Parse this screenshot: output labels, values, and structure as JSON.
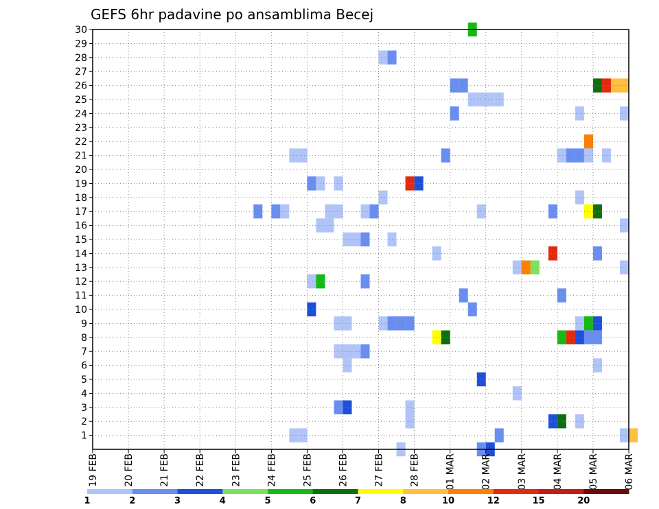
{
  "colors": {
    "levels": [
      "#b0c4f8",
      "#6a8ef0",
      "#1e4fd8",
      "#7ee060",
      "#16b816",
      "#0e6e0e",
      "#ffff00",
      "#ffbf40",
      "#ff7f00",
      "#e22a0e",
      "#c41a1a",
      "#6a0a0a"
    ],
    "grid": "#888888",
    "axis": "#000000"
  },
  "chart_data": {
    "type": "heatmap",
    "title": "GEFS 6hr padavine po ansamblima Becej",
    "xlabel": "",
    "ylabel": "",
    "x_ticks": [
      "19 FEB",
      "20 FEB",
      "21 FEB",
      "22 FEB",
      "23 FEB",
      "24 FEB",
      "25 FEB",
      "26 FEB",
      "27 FEB",
      "28 FEB",
      "01 MAR",
      "02 MAR",
      "03 MAR",
      "04 MAR",
      "05 MAR",
      "06 MAR"
    ],
    "xlim": [
      "19 FEB 00Z",
      "06 MAR 00Z"
    ],
    "x_step": "6hr",
    "y_ticks": [
      1,
      2,
      3,
      4,
      5,
      6,
      7,
      8,
      9,
      10,
      11,
      12,
      13,
      14,
      15,
      16,
      17,
      18,
      19,
      20,
      21,
      22,
      23,
      24,
      25,
      26,
      27,
      28,
      29,
      30
    ],
    "ylim": [
      0,
      30
    ],
    "legend": {
      "position": "bottom",
      "labels": [
        "1",
        "2",
        "3",
        "4",
        "5",
        "6",
        "7",
        "8",
        "10",
        "12",
        "15",
        "20"
      ],
      "bins": 12
    },
    "grid": true,
    "cells": [
      {
        "member": 30,
        "day": "01 MAR",
        "hour": "12Z",
        "level": 4
      },
      {
        "member": 28,
        "day": "27 FEB",
        "hour": "00Z",
        "level": 0
      },
      {
        "member": 28,
        "day": "27 FEB",
        "hour": "06Z",
        "level": 1
      },
      {
        "member": 26,
        "day": "01 MAR",
        "hour": "00Z",
        "level": 1
      },
      {
        "member": 26,
        "day": "01 MAR",
        "hour": "06Z",
        "level": 1
      },
      {
        "member": 26,
        "day": "05 MAR",
        "hour": "00Z",
        "level": 5
      },
      {
        "member": 26,
        "day": "05 MAR",
        "hour": "06Z",
        "level": 9
      },
      {
        "member": 26,
        "day": "05 MAR",
        "hour": "12Z",
        "level": 7
      },
      {
        "member": 26,
        "day": "05 MAR",
        "hour": "18Z",
        "level": 7
      },
      {
        "member": 25,
        "day": "01 MAR",
        "hour": "12Z",
        "level": 0
      },
      {
        "member": 25,
        "day": "01 MAR",
        "hour": "18Z",
        "level": 0
      },
      {
        "member": 25,
        "day": "02 MAR",
        "hour": "00Z",
        "level": 0
      },
      {
        "member": 25,
        "day": "02 MAR",
        "hour": "06Z",
        "level": 0
      },
      {
        "member": 24,
        "day": "01 MAR",
        "hour": "00Z",
        "level": 1
      },
      {
        "member": 24,
        "day": "04 MAR",
        "hour": "12Z",
        "level": 0
      },
      {
        "member": 24,
        "day": "05 MAR",
        "hour": "18Z",
        "level": 0
      },
      {
        "member": 22,
        "day": "04 MAR",
        "hour": "18Z",
        "level": 8
      },
      {
        "member": 21,
        "day": "24 FEB",
        "hour": "12Z",
        "level": 0
      },
      {
        "member": 21,
        "day": "24 FEB",
        "hour": "18Z",
        "level": 0
      },
      {
        "member": 21,
        "day": "28 FEB",
        "hour": "18Z",
        "level": 1
      },
      {
        "member": 21,
        "day": "04 MAR",
        "hour": "00Z",
        "level": 0
      },
      {
        "member": 21,
        "day": "04 MAR",
        "hour": "06Z",
        "level": 1
      },
      {
        "member": 21,
        "day": "04 MAR",
        "hour": "12Z",
        "level": 1
      },
      {
        "member": 21,
        "day": "04 MAR",
        "hour": "18Z",
        "level": 0
      },
      {
        "member": 21,
        "day": "05 MAR",
        "hour": "06Z",
        "level": 0
      },
      {
        "member": 19,
        "day": "25 FEB",
        "hour": "00Z",
        "level": 1
      },
      {
        "member": 19,
        "day": "25 FEB",
        "hour": "06Z",
        "level": 0
      },
      {
        "member": 19,
        "day": "25 FEB",
        "hour": "18Z",
        "level": 0
      },
      {
        "member": 19,
        "day": "27 FEB",
        "hour": "18Z",
        "level": 9
      },
      {
        "member": 19,
        "day": "28 FEB",
        "hour": "00Z",
        "level": 2
      },
      {
        "member": 18,
        "day": "27 FEB",
        "hour": "00Z",
        "level": 0
      },
      {
        "member": 18,
        "day": "04 MAR",
        "hour": "12Z",
        "level": 0
      },
      {
        "member": 17,
        "day": "23 FEB",
        "hour": "12Z",
        "level": 1
      },
      {
        "member": 17,
        "day": "24 FEB",
        "hour": "00Z",
        "level": 1
      },
      {
        "member": 17,
        "day": "24 FEB",
        "hour": "06Z",
        "level": 0
      },
      {
        "member": 17,
        "day": "25 FEB",
        "hour": "12Z",
        "level": 0
      },
      {
        "member": 17,
        "day": "25 FEB",
        "hour": "18Z",
        "level": 0
      },
      {
        "member": 17,
        "day": "26 FEB",
        "hour": "12Z",
        "level": 0
      },
      {
        "member": 17,
        "day": "26 FEB",
        "hour": "18Z",
        "level": 1
      },
      {
        "member": 17,
        "day": "01 MAR",
        "hour": "18Z",
        "level": 0
      },
      {
        "member": 17,
        "day": "03 MAR",
        "hour": "18Z",
        "level": 1
      },
      {
        "member": 17,
        "day": "04 MAR",
        "hour": "18Z",
        "level": 6
      },
      {
        "member": 17,
        "day": "05 MAR",
        "hour": "00Z",
        "level": 5
      },
      {
        "member": 16,
        "day": "25 FEB",
        "hour": "06Z",
        "level": 0
      },
      {
        "member": 16,
        "day": "25 FEB",
        "hour": "12Z",
        "level": 0
      },
      {
        "member": 16,
        "day": "05 MAR",
        "hour": "18Z",
        "level": 0
      },
      {
        "member": 15,
        "day": "26 FEB",
        "hour": "00Z",
        "level": 0
      },
      {
        "member": 15,
        "day": "26 FEB",
        "hour": "06Z",
        "level": 0
      },
      {
        "member": 15,
        "day": "26 FEB",
        "hour": "12Z",
        "level": 1
      },
      {
        "member": 15,
        "day": "27 FEB",
        "hour": "06Z",
        "level": 0
      },
      {
        "member": 14,
        "day": "28 FEB",
        "hour": "12Z",
        "level": 0
      },
      {
        "member": 14,
        "day": "03 MAR",
        "hour": "18Z",
        "level": 9
      },
      {
        "member": 14,
        "day": "05 MAR",
        "hour": "00Z",
        "level": 1
      },
      {
        "member": 13,
        "day": "02 MAR",
        "hour": "18Z",
        "level": 0
      },
      {
        "member": 13,
        "day": "03 MAR",
        "hour": "00Z",
        "level": 8
      },
      {
        "member": 13,
        "day": "03 MAR",
        "hour": "06Z",
        "level": 3
      },
      {
        "member": 13,
        "day": "05 MAR",
        "hour": "18Z",
        "level": 0
      },
      {
        "member": 12,
        "day": "25 FEB",
        "hour": "00Z",
        "level": 0
      },
      {
        "member": 12,
        "day": "25 FEB",
        "hour": "06Z",
        "level": 4
      },
      {
        "member": 12,
        "day": "26 FEB",
        "hour": "12Z",
        "level": 1
      },
      {
        "member": 11,
        "day": "01 MAR",
        "hour": "06Z",
        "level": 1
      },
      {
        "member": 11,
        "day": "04 MAR",
        "hour": "00Z",
        "level": 1
      },
      {
        "member": 10,
        "day": "25 FEB",
        "hour": "00Z",
        "level": 2
      },
      {
        "member": 10,
        "day": "01 MAR",
        "hour": "12Z",
        "level": 1
      },
      {
        "member": 9,
        "day": "25 FEB",
        "hour": "18Z",
        "level": 0
      },
      {
        "member": 9,
        "day": "26 FEB",
        "hour": "00Z",
        "level": 0
      },
      {
        "member": 9,
        "day": "27 FEB",
        "hour": "00Z",
        "level": 0
      },
      {
        "member": 9,
        "day": "27 FEB",
        "hour": "06Z",
        "level": 1
      },
      {
        "member": 9,
        "day": "27 FEB",
        "hour": "12Z",
        "level": 1
      },
      {
        "member": 9,
        "day": "27 FEB",
        "hour": "18Z",
        "level": 1
      },
      {
        "member": 9,
        "day": "04 MAR",
        "hour": "12Z",
        "level": 0
      },
      {
        "member": 9,
        "day": "04 MAR",
        "hour": "18Z",
        "level": 4
      },
      {
        "member": 9,
        "day": "05 MAR",
        "hour": "00Z",
        "level": 2
      },
      {
        "member": 8,
        "day": "28 FEB",
        "hour": "12Z",
        "level": 6
      },
      {
        "member": 8,
        "day": "28 FEB",
        "hour": "18Z",
        "level": 5
      },
      {
        "member": 8,
        "day": "04 MAR",
        "hour": "00Z",
        "level": 4
      },
      {
        "member": 8,
        "day": "04 MAR",
        "hour": "06Z",
        "level": 9
      },
      {
        "member": 8,
        "day": "04 MAR",
        "hour": "12Z",
        "level": 2
      },
      {
        "member": 8,
        "day": "04 MAR",
        "hour": "18Z",
        "level": 1
      },
      {
        "member": 8,
        "day": "05 MAR",
        "hour": "00Z",
        "level": 1
      },
      {
        "member": 7,
        "day": "25 FEB",
        "hour": "18Z",
        "level": 0
      },
      {
        "member": 7,
        "day": "26 FEB",
        "hour": "00Z",
        "level": 0
      },
      {
        "member": 7,
        "day": "26 FEB",
        "hour": "06Z",
        "level": 0
      },
      {
        "member": 7,
        "day": "26 FEB",
        "hour": "12Z",
        "level": 1
      },
      {
        "member": 6,
        "day": "26 FEB",
        "hour": "00Z",
        "level": 0
      },
      {
        "member": 6,
        "day": "05 MAR",
        "hour": "00Z",
        "level": 0
      },
      {
        "member": 5,
        "day": "01 MAR",
        "hour": "18Z",
        "level": 2
      },
      {
        "member": 4,
        "day": "02 MAR",
        "hour": "18Z",
        "level": 0
      },
      {
        "member": 3,
        "day": "25 FEB",
        "hour": "18Z",
        "level": 1
      },
      {
        "member": 3,
        "day": "26 FEB",
        "hour": "00Z",
        "level": 2
      },
      {
        "member": 3,
        "day": "27 FEB",
        "hour": "18Z",
        "level": 0
      },
      {
        "member": 2,
        "day": "27 FEB",
        "hour": "18Z",
        "level": 0
      },
      {
        "member": 2,
        "day": "03 MAR",
        "hour": "18Z",
        "level": 2
      },
      {
        "member": 2,
        "day": "04 MAR",
        "hour": "00Z",
        "level": 5
      },
      {
        "member": 2,
        "day": "04 MAR",
        "hour": "12Z",
        "level": 0
      },
      {
        "member": 1,
        "day": "24 FEB",
        "hour": "12Z",
        "level": 0
      },
      {
        "member": 1,
        "day": "24 FEB",
        "hour": "18Z",
        "level": 0
      },
      {
        "member": 1,
        "day": "02 MAR",
        "hour": "06Z",
        "level": 1
      },
      {
        "member": 1,
        "day": "05 MAR",
        "hour": "18Z",
        "level": 0
      },
      {
        "member": 1,
        "day": "06 MAR",
        "hour": "00Z",
        "level": 7
      },
      {
        "member": 0,
        "day": "27 FEB",
        "hour": "12Z",
        "level": 0
      },
      {
        "member": 0,
        "day": "01 MAR",
        "hour": "18Z",
        "level": 1
      },
      {
        "member": 0,
        "day": "02 MAR",
        "hour": "00Z",
        "level": 2
      }
    ]
  }
}
